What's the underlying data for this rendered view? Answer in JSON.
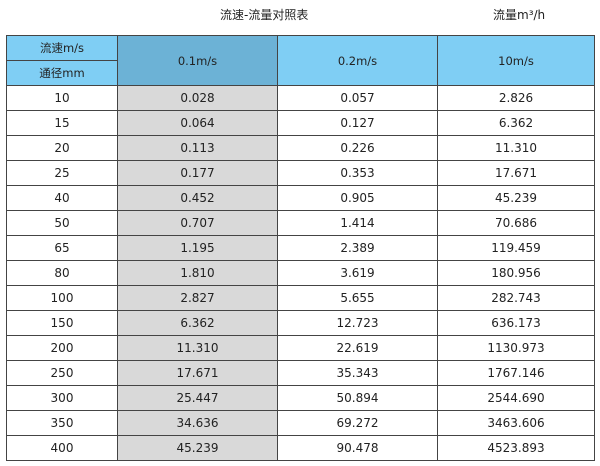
{
  "title": "流速-流量对照表",
  "unit_label": "流量m³/h",
  "header": {
    "velocity_label": "流速m/s",
    "diameter_label": "通径mm",
    "columns": [
      "0.1m/s",
      "0.2m/s",
      "10m/s"
    ]
  },
  "colors": {
    "header": "#7fcef4",
    "header_highlight": "#6cb2d6",
    "highlight_column": "#d9d9d9"
  },
  "rows": [
    [
      "10",
      "0.028",
      "0.057",
      "2.826"
    ],
    [
      "15",
      "0.064",
      "0.127",
      "6.362"
    ],
    [
      "20",
      "0.113",
      "0.226",
      "11.310"
    ],
    [
      "25",
      "0.177",
      "0.353",
      "17.671"
    ],
    [
      "40",
      "0.452",
      "0.905",
      "45.239"
    ],
    [
      "50",
      "0.707",
      "1.414",
      "70.686"
    ],
    [
      "65",
      "1.195",
      "2.389",
      "119.459"
    ],
    [
      "80",
      "1.810",
      "3.619",
      "180.956"
    ],
    [
      "100",
      "2.827",
      "5.655",
      "282.743"
    ],
    [
      "150",
      "6.362",
      "12.723",
      "636.173"
    ],
    [
      "200",
      "11.310",
      "22.619",
      "1130.973"
    ],
    [
      "250",
      "17.671",
      "35.343",
      "1767.146"
    ],
    [
      "300",
      "25.447",
      "50.894",
      "2544.690"
    ],
    [
      "350",
      "34.636",
      "69.272",
      "3463.606"
    ],
    [
      "400",
      "45.239",
      "90.478",
      "4523.893"
    ]
  ]
}
